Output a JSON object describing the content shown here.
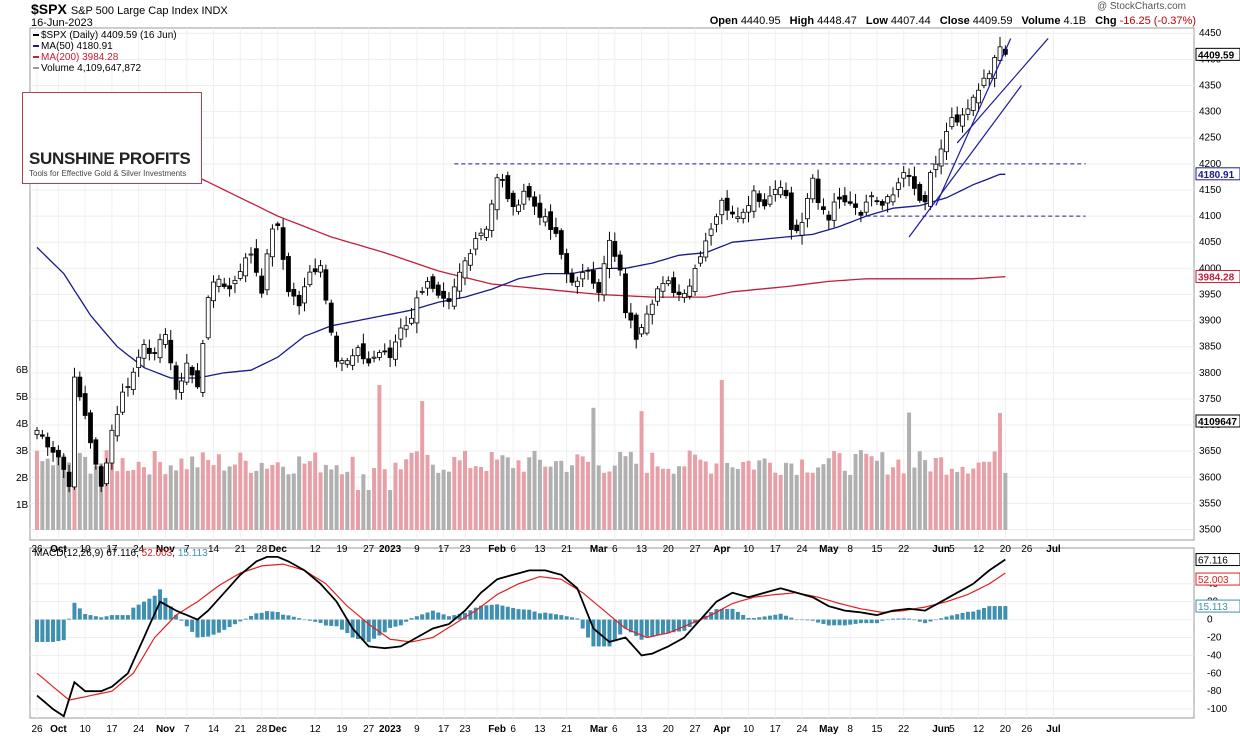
{
  "header": {
    "symbol": "$SPX",
    "name": "S&P 500 Large Cap Index",
    "exchange": "INDX",
    "date": "16-Jun-2023",
    "credit": "@ StockCharts.com",
    "open_label": "Open",
    "open": "4440.95",
    "high_label": "High",
    "high": "4448.47",
    "low_label": "Low",
    "low": "4407.44",
    "close_label": "Close",
    "close": "4409.59",
    "volume_label": "Volume",
    "volume": "4.1B",
    "chg_label": "Chg",
    "chg": "-16.25 (-0.37%)"
  },
  "legend": {
    "price": "$SPX (Daily) 4409.59 (16 Jun)",
    "ma50": "MA(50) 4180.91",
    "ma200": "MA(200) 3984.28",
    "volume": "Volume 4,109,647,872"
  },
  "logo": {
    "name": "SUNSHINE PROFITS",
    "tagline": "Tools for Effective Gold & Silver Investments"
  },
  "macd_legend": {
    "label": "MACD(12,26,9)",
    "macd": "67.116",
    "signal": "52.003",
    "hist": "15.113"
  },
  "colors": {
    "ma50": "#1a1a8c",
    "ma200": "#c0203a",
    "up_volume": "#e8a0a8",
    "down_volume": "#b0b0b0",
    "histogram": "#3f8fb0",
    "macd_line": "#000000",
    "signal_line": "#e02020",
    "trendline": "#1a1aa0"
  },
  "chart_data": [
    {
      "type": "candlestick",
      "ylim": [
        3480,
        4460
      ],
      "yticks": [
        3500,
        3550,
        3600,
        3650,
        3700,
        3750,
        3800,
        3850,
        3900,
        3950,
        4000,
        4050,
        4100,
        4150,
        4200,
        4250,
        4300,
        4350,
        4400,
        4450
      ],
      "price_tags": {
        "close": "4409.59",
        "ma50": "4180.91",
        "ma200": "3984.28",
        "volume": "4109647"
      },
      "volume_ticks": [
        "1B",
        "2B",
        "3B",
        "4B",
        "5B",
        "6B"
      ],
      "xticks": [
        {
          "label": "26",
          "i": 0
        },
        {
          "label": "Oct",
          "i": 4,
          "bold": true
        },
        {
          "label": "10",
          "i": 9
        },
        {
          "label": "17",
          "i": 14
        },
        {
          "label": "24",
          "i": 19
        },
        {
          "label": "Nov",
          "i": 24,
          "bold": true
        },
        {
          "label": "7",
          "i": 28
        },
        {
          "label": "14",
          "i": 33
        },
        {
          "label": "21",
          "i": 38
        },
        {
          "label": "28",
          "i": 42
        },
        {
          "label": "Dec",
          "i": 45,
          "bold": true
        },
        {
          "label": "12",
          "i": 52
        },
        {
          "label": "19",
          "i": 57
        },
        {
          "label": "27",
          "i": 62
        },
        {
          "label": "2023",
          "i": 66,
          "bold": true
        },
        {
          "label": "9",
          "i": 71
        },
        {
          "label": "17",
          "i": 76
        },
        {
          "label": "23",
          "i": 80
        },
        {
          "label": "Feb",
          "i": 86,
          "bold": true
        },
        {
          "label": "6",
          "i": 89
        },
        {
          "label": "13",
          "i": 94
        },
        {
          "label": "21",
          "i": 99
        },
        {
          "label": "Mar",
          "i": 105,
          "bold": true
        },
        {
          "label": "6",
          "i": 108
        },
        {
          "label": "13",
          "i": 113
        },
        {
          "label": "20",
          "i": 118
        },
        {
          "label": "27",
          "i": 123
        },
        {
          "label": "Apr",
          "i": 128,
          "bold": true
        },
        {
          "label": "10",
          "i": 133
        },
        {
          "label": "17",
          "i": 138
        },
        {
          "label": "24",
          "i": 143
        },
        {
          "label": "May",
          "i": 148,
          "bold": true
        },
        {
          "label": "8",
          "i": 152
        },
        {
          "label": "15",
          "i": 157
        },
        {
          "label": "22",
          "i": 162
        },
        {
          "label": "Jun",
          "i": 169,
          "bold": true
        },
        {
          "label": "5",
          "i": 171
        },
        {
          "label": "12",
          "i": 176
        },
        {
          "label": "20",
          "i": 181
        },
        {
          "label": "26",
          "i": 185
        },
        {
          "label": "Jul",
          "i": 190,
          "bold": true
        }
      ],
      "close_keys": [
        [
          0,
          3690
        ],
        [
          4,
          3640
        ],
        [
          6,
          3590
        ],
        [
          7,
          3785
        ],
        [
          9,
          3720
        ],
        [
          11,
          3620
        ],
        [
          12,
          3580
        ],
        [
          14,
          3690
        ],
        [
          16,
          3760
        ],
        [
          18,
          3800
        ],
        [
          20,
          3860
        ],
        [
          22,
          3830
        ],
        [
          24,
          3880
        ],
        [
          26,
          3760
        ],
        [
          28,
          3820
        ],
        [
          30,
          3770
        ],
        [
          32,
          3950
        ],
        [
          34,
          3980
        ],
        [
          36,
          3960
        ],
        [
          38,
          4000
        ],
        [
          40,
          4030
        ],
        [
          42,
          3960
        ],
        [
          44,
          4080
        ],
        [
          45,
          4075
        ],
        [
          47,
          3960
        ],
        [
          49,
          3930
        ],
        [
          51,
          3990
        ],
        [
          53,
          4010
        ],
        [
          54,
          3940
        ],
        [
          56,
          3830
        ],
        [
          58,
          3820
        ],
        [
          60,
          3840
        ],
        [
          62,
          3820
        ],
        [
          64,
          3840
        ],
        [
          66,
          3830
        ],
        [
          68,
          3890
        ],
        [
          70,
          3900
        ],
        [
          71,
          3950
        ],
        [
          73,
          3970
        ],
        [
          75,
          3940
        ],
        [
          77,
          3930
        ],
        [
          79,
          3990
        ],
        [
          82,
          4060
        ],
        [
          84,
          4080
        ],
        [
          86,
          4170
        ],
        [
          87,
          4165
        ],
        [
          89,
          4110
        ],
        [
          91,
          4150
        ],
        [
          93,
          4120
        ],
        [
          95,
          4090
        ],
        [
          97,
          4060
        ],
        [
          99,
          3990
        ],
        [
          101,
          3970
        ],
        [
          103,
          4000
        ],
        [
          105,
          3960
        ],
        [
          107,
          4050
        ],
        [
          109,
          3990
        ],
        [
          110,
          3920
        ],
        [
          112,
          3870
        ],
        [
          114,
          3920
        ],
        [
          116,
          3960
        ],
        [
          118,
          3970
        ],
        [
          120,
          3950
        ],
        [
          122,
          3970
        ],
        [
          124,
          4030
        ],
        [
          126,
          4080
        ],
        [
          128,
          4125
        ],
        [
          130,
          4110
        ],
        [
          132,
          4105
        ],
        [
          134,
          4150
        ],
        [
          136,
          4120
        ],
        [
          138,
          4160
        ],
        [
          140,
          4140
        ],
        [
          141,
          4070
        ],
        [
          143,
          4080
        ],
        [
          144,
          4130
        ],
        [
          145,
          4170
        ],
        [
          146,
          4130
        ],
        [
          148,
          4100
        ],
        [
          150,
          4140
        ],
        [
          152,
          4130
        ],
        [
          154,
          4110
        ],
        [
          156,
          4140
        ],
        [
          158,
          4120
        ],
        [
          160,
          4140
        ],
        [
          162,
          4190
        ],
        [
          164,
          4150
        ],
        [
          165,
          4130
        ],
        [
          166,
          4120
        ],
        [
          167,
          4180
        ],
        [
          168,
          4200
        ],
        [
          169,
          4220
        ],
        [
          171,
          4290
        ],
        [
          172,
          4280
        ],
        [
          174,
          4300
        ],
        [
          176,
          4340
        ],
        [
          178,
          4370
        ],
        [
          180,
          4425
        ],
        [
          181,
          4410
        ]
      ],
      "ma50_keys": [
        [
          0,
          4040
        ],
        [
          5,
          3990
        ],
        [
          10,
          3910
        ],
        [
          15,
          3850
        ],
        [
          20,
          3810
        ],
        [
          25,
          3790
        ],
        [
          30,
          3790
        ],
        [
          35,
          3800
        ],
        [
          40,
          3805
        ],
        [
          45,
          3830
        ],
        [
          50,
          3870
        ],
        [
          55,
          3890
        ],
        [
          60,
          3900
        ],
        [
          65,
          3910
        ],
        [
          70,
          3920
        ],
        [
          75,
          3935
        ],
        [
          80,
          3945
        ],
        [
          85,
          3960
        ],
        [
          90,
          3980
        ],
        [
          95,
          3990
        ],
        [
          100,
          3990
        ],
        [
          105,
          4000
        ],
        [
          110,
          4000
        ],
        [
          115,
          4010
        ],
        [
          120,
          4025
        ],
        [
          125,
          4030
        ],
        [
          130,
          4050
        ],
        [
          135,
          4055
        ],
        [
          140,
          4060
        ],
        [
          145,
          4065
        ],
        [
          150,
          4080
        ],
        [
          155,
          4100
        ],
        [
          160,
          4115
        ],
        [
          165,
          4120
        ],
        [
          170,
          4135
        ],
        [
          175,
          4160
        ],
        [
          180,
          4180
        ]
      ],
      "ma200_keys": [
        [
          0,
          4270
        ],
        [
          15,
          4240
        ],
        [
          25,
          4200
        ],
        [
          35,
          4150
        ],
        [
          45,
          4100
        ],
        [
          55,
          4060
        ],
        [
          65,
          4030
        ],
        [
          75,
          3995
        ],
        [
          85,
          3970
        ],
        [
          95,
          3960
        ],
        [
          105,
          3950
        ],
        [
          115,
          3945
        ],
        [
          120,
          3945
        ],
        [
          125,
          3945
        ],
        [
          130,
          3955
        ],
        [
          140,
          3965
        ],
        [
          148,
          3975
        ],
        [
          155,
          3980
        ],
        [
          165,
          3980
        ],
        [
          175,
          3980
        ],
        [
          181,
          3984
        ]
      ],
      "resistance_lines": [
        {
          "value": 4200,
          "from_i": 78,
          "to_i": 196
        },
        {
          "value": 4100,
          "from_i": 155,
          "to_i": 196
        }
      ],
      "trendlines": [
        {
          "from": [
            163,
            4060
          ],
          "to": [
            184,
            4350
          ]
        },
        {
          "from": [
            168,
            4120
          ],
          "to": [
            182,
            4440
          ]
        },
        {
          "from": [
            172,
            4240
          ],
          "to": [
            189,
            4440
          ]
        }
      ]
    },
    {
      "type": "bar",
      "name": "MACD(12,26,9)",
      "ylim": [
        -110,
        80
      ],
      "yticks": [
        -100,
        -80,
        -60,
        -40,
        -20,
        0,
        20,
        40
      ],
      "tags": {
        "macd": "67.116",
        "signal": "52.003",
        "hist": "15.113"
      },
      "macd_keys": [
        [
          0,
          -85
        ],
        [
          3,
          -100
        ],
        [
          5,
          -108
        ],
        [
          7,
          -70
        ],
        [
          9,
          -80
        ],
        [
          12,
          -80
        ],
        [
          14,
          -75
        ],
        [
          17,
          -60
        ],
        [
          20,
          -20
        ],
        [
          23,
          20
        ],
        [
          26,
          10
        ],
        [
          28,
          5
        ],
        [
          30,
          0
        ],
        [
          32,
          10
        ],
        [
          35,
          30
        ],
        [
          38,
          50
        ],
        [
          41,
          65
        ],
        [
          43,
          70
        ],
        [
          45,
          70
        ],
        [
          47,
          65
        ],
        [
          50,
          55
        ],
        [
          53,
          40
        ],
        [
          56,
          20
        ],
        [
          59,
          -10
        ],
        [
          62,
          -30
        ],
        [
          65,
          -32
        ],
        [
          68,
          -30
        ],
        [
          71,
          -20
        ],
        [
          74,
          -10
        ],
        [
          77,
          -5
        ],
        [
          80,
          10
        ],
        [
          83,
          30
        ],
        [
          86,
          45
        ],
        [
          89,
          50
        ],
        [
          92,
          55
        ],
        [
          95,
          55
        ],
        [
          98,
          50
        ],
        [
          101,
          35
        ],
        [
          104,
          -10
        ],
        [
          107,
          -25
        ],
        [
          110,
          -20
        ],
        [
          113,
          -40
        ],
        [
          115,
          -38
        ],
        [
          118,
          -30
        ],
        [
          121,
          -20
        ],
        [
          124,
          0
        ],
        [
          127,
          20
        ],
        [
          130,
          30
        ],
        [
          133,
          25
        ],
        [
          136,
          30
        ],
        [
          139,
          35
        ],
        [
          142,
          30
        ],
        [
          145,
          25
        ],
        [
          148,
          15
        ],
        [
          151,
          10
        ],
        [
          154,
          8
        ],
        [
          157,
          5
        ],
        [
          160,
          10
        ],
        [
          163,
          12
        ],
        [
          166,
          10
        ],
        [
          169,
          20
        ],
        [
          172,
          30
        ],
        [
          175,
          40
        ],
        [
          178,
          55
        ],
        [
          181,
          67.116
        ]
      ],
      "signal_keys": [
        [
          0,
          -60
        ],
        [
          3,
          -75
        ],
        [
          6,
          -90
        ],
        [
          10,
          -85
        ],
        [
          14,
          -80
        ],
        [
          18,
          -60
        ],
        [
          22,
          -20
        ],
        [
          26,
          5
        ],
        [
          30,
          20
        ],
        [
          34,
          38
        ],
        [
          38,
          52
        ],
        [
          42,
          60
        ],
        [
          46,
          62
        ],
        [
          50,
          55
        ],
        [
          54,
          40
        ],
        [
          58,
          15
        ],
        [
          62,
          -5
        ],
        [
          66,
          -22
        ],
        [
          70,
          -25
        ],
        [
          74,
          -20
        ],
        [
          78,
          -5
        ],
        [
          82,
          10
        ],
        [
          86,
          28
        ],
        [
          90,
          40
        ],
        [
          94,
          48
        ],
        [
          98,
          45
        ],
        [
          102,
          30
        ],
        [
          106,
          10
        ],
        [
          110,
          -10
        ],
        [
          114,
          -20
        ],
        [
          118,
          -15
        ],
        [
          122,
          -5
        ],
        [
          126,
          5
        ],
        [
          130,
          18
        ],
        [
          134,
          25
        ],
        [
          138,
          28
        ],
        [
          142,
          30
        ],
        [
          146,
          25
        ],
        [
          150,
          18
        ],
        [
          154,
          12
        ],
        [
          158,
          8
        ],
        [
          162,
          10
        ],
        [
          166,
          14
        ],
        [
          170,
          20
        ],
        [
          174,
          28
        ],
        [
          178,
          40
        ],
        [
          181,
          52.003
        ]
      ]
    }
  ]
}
